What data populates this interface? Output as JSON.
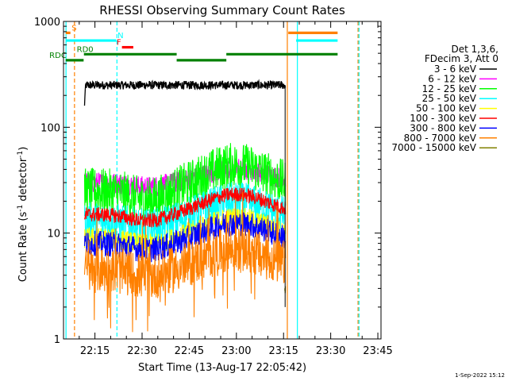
{
  "chart_data": {
    "type": "line",
    "title": "RHESSI Observing Summary Count Rates",
    "xlabel": "Start Time (13-Aug-17 22:05:42)",
    "ylabel_main": "Count Rate (s",
    "ylabel_sup1": "-1",
    "ylabel_mid": " detector",
    "ylabel_sup2": "-1",
    "ylabel_end": ")",
    "footer_date": "1-Sep-2022 15:12",
    "x_range_min": [
      22.0833,
      23.7667
    ],
    "y_scale": "log",
    "ylim": [
      1,
      1000
    ],
    "x_ticks": [
      {
        "label": "22:15",
        "min": 1335
      },
      {
        "label": "22:30",
        "min": 1350
      },
      {
        "label": "22:45",
        "min": 1365
      },
      {
        "label": "23:00",
        "min": 1380
      },
      {
        "label": "23:15",
        "min": 1395
      },
      {
        "label": "23:30",
        "min": 1410
      },
      {
        "label": "23:45",
        "min": 1425
      }
    ],
    "y_ticks": [
      {
        "label": "1",
        "value": 1
      },
      {
        "label": "10",
        "value": 10
      },
      {
        "label": "100",
        "value": 100
      },
      {
        "label": "1000",
        "value": 1000
      }
    ],
    "legend": {
      "header1": "Det 1,3,6,",
      "header2": "FDecim 3, Att 0",
      "placement": "right"
    },
    "series": [
      {
        "name": "3 - 6 keV",
        "color": "#000000",
        "base": 250,
        "hump": 0,
        "noise": 0.04,
        "start": 1331.7,
        "end": 1395.6
      },
      {
        "name": "6 - 12 keV",
        "color": "#ff00ff",
        "base": 30,
        "hump": 0.35,
        "noise": 0.1,
        "start": 1331.7,
        "end": 1395.6
      },
      {
        "name": "12 - 25 keV",
        "color": "#00ff00",
        "base": 25,
        "hump": 0.75,
        "noise": 0.22,
        "start": 1331.7,
        "end": 1395.6
      },
      {
        "name": "25 - 50 keV",
        "color": "#00ffff",
        "base": 13,
        "hump": 0.55,
        "noise": 0.18,
        "start": 1331.7,
        "end": 1395.6
      },
      {
        "name": "50 - 100 keV",
        "color": "#ffff00",
        "base": 9,
        "hump": 0.55,
        "noise": 0.1,
        "start": 1331.7,
        "end": 1395.6
      },
      {
        "name": "100 - 300 keV",
        "color": "#ff0000",
        "base": 15,
        "hump": 0.55,
        "noise": 0.07,
        "start": 1331.7,
        "end": 1395.6
      },
      {
        "name": "300 - 800 keV",
        "color": "#0000ff",
        "base": 8,
        "hump": 0.55,
        "noise": 0.12,
        "start": 1331.7,
        "end": 1395.6
      },
      {
        "name": "800 - 7000 keV",
        "color": "#ff8000",
        "base": 4.5,
        "hump": 0.55,
        "noise": 0.22,
        "start": 1331.7,
        "end": 1395.6
      },
      {
        "name": "7000 - 15000 keV",
        "color": "#808000",
        "base": 3,
        "hump": 0,
        "noise": 0.05,
        "start": 1395.4,
        "end": 1395.6
      }
    ],
    "flag_bars": [
      {
        "label": "S",
        "label_color": "#ff8000",
        "color": "#ff8000",
        "value": 780,
        "segments": [
          [
            1325.7,
            1327.2
          ],
          [
            1396.5,
            1412.2
          ]
        ],
        "label_min": 1327.6
      },
      {
        "label": "N",
        "label_color": "#00ffff",
        "color": "#00ffff",
        "value": 660,
        "segments": [
          [
            1325.7,
            1341.8
          ],
          [
            1399.0,
            1412.2
          ]
        ],
        "label_min": 1342.2
      },
      {
        "label": "F",
        "label_color": "#ff0000",
        "color": "#ff0000",
        "value": 570,
        "segments": [
          [
            1343.6,
            1347.2
          ]
        ],
        "label_min": 1341.9
      },
      {
        "label": "RD0",
        "label_color": "#008000",
        "color": "#008000",
        "value": 490,
        "segments": [
          [
            1331.5,
            1361.0
          ],
          [
            1376.8,
            1412.2
          ]
        ],
        "label_min": 1329.2
      },
      {
        "label": "RDC",
        "label_color": "#008000",
        "color": "#008000",
        "value": 430,
        "segments": [
          [
            1325.7,
            1331.4
          ],
          [
            1361.0,
            1376.8
          ]
        ],
        "label_min": 1320.5
      }
    ],
    "vlines": [
      {
        "min": 1325.8,
        "color": "#00ffff",
        "style": "solid"
      },
      {
        "min": 1328.5,
        "color": "#ff8000",
        "style": "dashed"
      },
      {
        "min": 1342.0,
        "color": "#00ffff",
        "style": "dashed"
      },
      {
        "min": 1396.2,
        "color": "#ff8000",
        "style": "solid"
      },
      {
        "min": 1399.4,
        "color": "#00ffff",
        "style": "solid"
      },
      {
        "min": 1418.7,
        "color": "#ff8000",
        "style": "dashed"
      },
      {
        "min": 1419.0,
        "color": "#00ffff",
        "style": "dashed"
      }
    ]
  }
}
